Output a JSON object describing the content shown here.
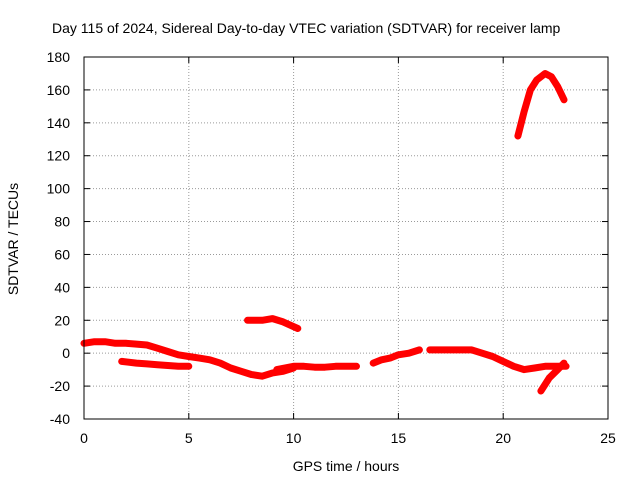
{
  "chart_data": {
    "type": "line",
    "title": "Day 115 of 2024, Sidereal Day-to-day VTEC variation (SDTVAR) for receiver lamp",
    "xlabel": "GPS time / hours",
    "ylabel": "SDTVAR / TECUs",
    "xlim": [
      0,
      25
    ],
    "ylim": [
      -40,
      180
    ],
    "xticks": [
      0,
      5,
      10,
      15,
      20,
      25
    ],
    "yticks": [
      -40,
      -20,
      0,
      20,
      40,
      60,
      80,
      100,
      120,
      140,
      160,
      180
    ],
    "grid": true,
    "legend": "none",
    "color": "#ff0000",
    "series": [
      {
        "x": [
          0,
          0.5,
          1,
          1.5,
          2,
          2.5,
          3,
          3.5,
          4,
          4.5,
          5,
          5.5,
          6,
          6.5,
          7,
          7.5,
          8,
          8.5,
          9,
          9.5,
          10
        ],
        "y": [
          6,
          7,
          7,
          6,
          6,
          5.5,
          5,
          3,
          1,
          -1,
          -2,
          -3,
          -4,
          -6,
          -9,
          -11,
          -13,
          -14,
          -12,
          -11,
          -9
        ]
      },
      {
        "x": [
          1.8,
          2.5,
          3,
          3.5,
          4,
          4.5,
          5
        ],
        "y": [
          -5,
          -6,
          -6.5,
          -7,
          -7.5,
          -8,
          -8
        ]
      },
      {
        "x": [
          7.8,
          8.5,
          9,
          9.5,
          10.2
        ],
        "y": [
          20,
          20,
          21,
          19,
          15
        ]
      },
      {
        "x": [
          9.2,
          9.6,
          10,
          10.5,
          11,
          11.5,
          12,
          12.5,
          13
        ],
        "y": [
          -10,
          -9,
          -8,
          -8,
          -8.5,
          -8.5,
          -8,
          -8,
          -8
        ]
      },
      {
        "x": [
          13.8,
          14.2,
          14.6,
          15,
          15.5,
          16
        ],
        "y": [
          -6,
          -4,
          -3,
          -1,
          0,
          2
        ]
      },
      {
        "x": [
          16.5,
          17,
          17.5,
          18,
          18.5,
          19,
          19.5,
          20,
          20.5,
          21,
          21.5,
          22,
          22.5,
          23
        ],
        "y": [
          2,
          2,
          2,
          2,
          2,
          0,
          -2,
          -5,
          -8,
          -10,
          -9,
          -8,
          -8,
          -8
        ]
      },
      {
        "x": [
          21.8,
          22.2,
          22.6,
          22.9
        ],
        "y": [
          -23,
          -15,
          -10,
          -6
        ]
      },
      {
        "x": [
          20.7,
          21,
          21.3,
          21.6,
          22,
          22.3,
          22.6,
          22.9
        ],
        "y": [
          132,
          147,
          160,
          166,
          170,
          168,
          162,
          154
        ]
      }
    ]
  }
}
